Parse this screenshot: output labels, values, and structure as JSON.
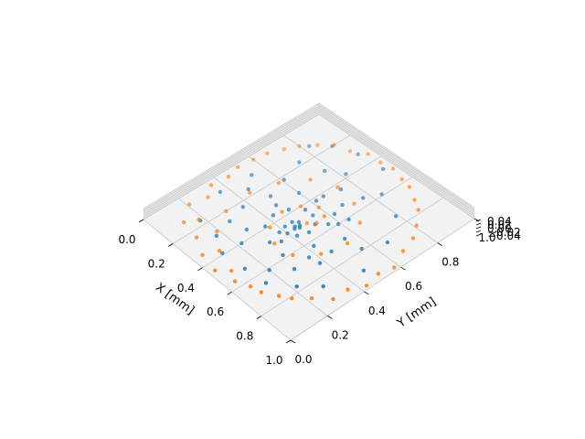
{
  "chart_data": {
    "type": "scatter",
    "projection": "3d",
    "title": "",
    "xlabel": "X [mm]",
    "ylabel": "Y [mm]",
    "zlabel": "",
    "x_ticks": [
      "0.0",
      "0.2",
      "0.4",
      "0.6",
      "0.8",
      "1.0"
    ],
    "y_ticks": [
      "0.0",
      "0.2",
      "0.4",
      "0.6",
      "0.8",
      "1.0"
    ],
    "z_ticks": [
      "−0.04",
      "−0.02",
      "0.00",
      "0.02",
      "0.04"
    ],
    "xlim": [
      0,
      1
    ],
    "ylim": [
      0,
      1
    ],
    "zlim": [
      -0.05,
      0.05
    ],
    "grid": true,
    "legend": "none",
    "series": [
      {
        "color": "#1f77b4",
        "description": "spiral inward toward center (z = 0)",
        "points": [
          [
            0.17,
            0.18
          ],
          [
            0.09,
            0.36
          ],
          [
            0.1,
            0.53
          ],
          [
            0.18,
            0.73
          ],
          [
            0.38,
            0.82
          ],
          [
            0.59,
            0.84
          ],
          [
            0.74,
            0.79
          ],
          [
            0.84,
            0.66
          ],
          [
            0.9,
            0.48
          ],
          [
            0.85,
            0.3
          ],
          [
            0.77,
            0.22
          ],
          [
            0.66,
            0.14
          ],
          [
            0.53,
            0.13
          ],
          [
            0.39,
            0.12
          ],
          [
            0.29,
            0.17
          ],
          [
            0.26,
            0.27
          ],
          [
            0.23,
            0.37
          ],
          [
            0.26,
            0.5
          ],
          [
            0.33,
            0.6
          ],
          [
            0.42,
            0.66
          ],
          [
            0.52,
            0.68
          ],
          [
            0.61,
            0.64
          ],
          [
            0.69,
            0.55
          ],
          [
            0.71,
            0.46
          ],
          [
            0.67,
            0.37
          ],
          [
            0.58,
            0.3
          ],
          [
            0.48,
            0.31
          ],
          [
            0.39,
            0.36
          ],
          [
            0.36,
            0.43
          ],
          [
            0.38,
            0.5
          ],
          [
            0.43,
            0.55
          ],
          [
            0.48,
            0.55
          ],
          [
            0.53,
            0.52
          ],
          [
            0.55,
            0.47
          ],
          [
            0.53,
            0.42
          ],
          [
            0.49,
            0.4
          ],
          [
            0.45,
            0.42
          ],
          [
            0.45,
            0.46
          ],
          [
            0.47,
            0.48
          ],
          [
            0.49,
            0.47
          ],
          [
            0.5,
            0.46
          ],
          [
            0.49,
            0.44
          ],
          [
            0.48,
            0.45
          ],
          [
            0.2,
            0.9
          ],
          [
            0.32,
            0.94
          ],
          [
            0.47,
            0.95
          ],
          [
            0.13,
            0.83
          ],
          [
            0.61,
            0.2
          ],
          [
            0.73,
            0.38
          ],
          [
            0.3,
            0.77
          ],
          [
            0.55,
            0.77
          ],
          [
            0.4,
            0.22
          ],
          [
            0.79,
            0.56
          ],
          [
            0.16,
            0.46
          ],
          [
            0.6,
            0.59
          ],
          [
            0.35,
            0.29
          ],
          [
            0.44,
            0.74
          ],
          [
            0.68,
            0.28
          ],
          [
            0.22,
            0.61
          ],
          [
            0.51,
            0.35
          ],
          [
            0.57,
            0.56
          ],
          [
            0.42,
            0.62
          ],
          [
            0.63,
            0.43
          ],
          [
            0.32,
            0.48
          ],
          [
            0.46,
            0.38
          ],
          [
            0.54,
            0.62
          ]
        ]
      },
      {
        "color": "#ff7f0e",
        "description": "spiral outward from center (z = 0)",
        "points": [
          [
            0.5,
            0.5
          ],
          [
            0.53,
            0.53
          ],
          [
            0.52,
            0.58
          ],
          [
            0.46,
            0.6
          ],
          [
            0.4,
            0.55
          ],
          [
            0.37,
            0.47
          ],
          [
            0.41,
            0.37
          ],
          [
            0.5,
            0.32
          ],
          [
            0.61,
            0.33
          ],
          [
            0.69,
            0.42
          ],
          [
            0.72,
            0.54
          ],
          [
            0.66,
            0.66
          ],
          [
            0.55,
            0.72
          ],
          [
            0.42,
            0.74
          ],
          [
            0.3,
            0.69
          ],
          [
            0.22,
            0.58
          ],
          [
            0.18,
            0.45
          ],
          [
            0.2,
            0.3
          ],
          [
            0.27,
            0.19
          ],
          [
            0.37,
            0.12
          ],
          [
            0.5,
            0.08
          ],
          [
            0.63,
            0.08
          ],
          [
            0.76,
            0.13
          ],
          [
            0.87,
            0.22
          ],
          [
            0.94,
            0.36
          ],
          [
            0.96,
            0.51
          ],
          [
            0.93,
            0.67
          ],
          [
            0.85,
            0.81
          ],
          [
            0.72,
            0.91
          ],
          [
            0.58,
            0.96
          ],
          [
            0.43,
            0.97
          ],
          [
            0.28,
            0.93
          ],
          [
            0.15,
            0.86
          ],
          [
            0.07,
            0.74
          ],
          [
            0.03,
            0.6
          ],
          [
            0.04,
            0.45
          ],
          [
            0.08,
            0.3
          ],
          [
            0.16,
            0.18
          ],
          [
            0.24,
            0.1
          ],
          [
            0.34,
            0.05
          ],
          [
            0.45,
            0.03
          ],
          [
            0.13,
            0.12
          ],
          [
            0.06,
            0.21
          ],
          [
            0.03,
            0.36
          ],
          [
            0.98,
            0.43
          ],
          [
            0.98,
            0.58
          ],
          [
            0.9,
            0.75
          ],
          [
            0.78,
            0.88
          ],
          [
            0.64,
            0.95
          ],
          [
            0.5,
            0.98
          ],
          [
            0.35,
            0.97
          ],
          [
            0.2,
            0.91
          ],
          [
            0.1,
            0.8
          ],
          [
            0.04,
            0.67
          ],
          [
            0.02,
            0.52
          ],
          [
            0.94,
            0.28
          ],
          [
            0.81,
            0.16
          ],
          [
            0.69,
            0.09
          ],
          [
            0.56,
            0.05
          ]
        ]
      }
    ]
  }
}
